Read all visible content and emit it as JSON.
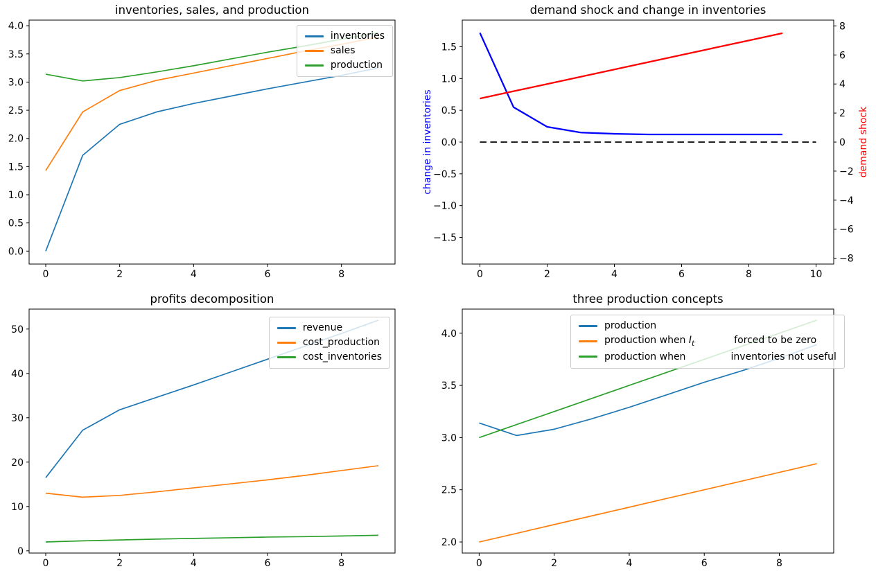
{
  "figure": {
    "background": "#ffffff",
    "rows": 2,
    "cols": 2
  },
  "chart_data": [
    {
      "type": "line",
      "title": "inventories, sales, and production",
      "x": [
        0,
        1,
        2,
        3,
        4,
        5,
        6,
        7,
        8,
        9
      ],
      "xlim": [
        -0.45,
        9.45
      ],
      "ylim": [
        -0.23,
        4.1
      ],
      "xticks": {
        "values": [
          0,
          2,
          4,
          6,
          8
        ],
        "labels": [
          "0",
          "2",
          "4",
          "6",
          "8"
        ]
      },
      "yticks": {
        "values": [
          0.0,
          0.5,
          1.0,
          1.5,
          2.0,
          2.5,
          3.0,
          3.5,
          4.0
        ],
        "labels": [
          "0.0",
          "0.5",
          "1.0",
          "1.5",
          "2.0",
          "2.5",
          "3.0",
          "3.5",
          "4.0"
        ]
      },
      "grid": false,
      "legend_loc": "upper right",
      "series": [
        {
          "name": "inventories",
          "color": "#1f77b4",
          "lw": 1.7,
          "values": [
            0.0,
            1.7,
            2.25,
            2.47,
            2.62,
            2.75,
            2.88,
            3.0,
            3.12,
            3.25
          ],
          "legend": [
            {
              "t": "inventories"
            }
          ]
        },
        {
          "name": "sales",
          "color": "#ff7f0e",
          "lw": 1.7,
          "values": [
            1.43,
            2.47,
            2.85,
            3.03,
            3.16,
            3.29,
            3.42,
            3.55,
            3.67,
            3.8
          ],
          "legend": [
            {
              "t": "sales"
            }
          ]
        },
        {
          "name": "production",
          "color": "#2ca02c",
          "lw": 1.7,
          "values": [
            3.14,
            3.02,
            3.08,
            3.18,
            3.29,
            3.41,
            3.53,
            3.64,
            3.76,
            3.88
          ],
          "legend": [
            {
              "t": "production"
            }
          ]
        }
      ]
    },
    {
      "type": "line",
      "title": "demand shock and change in inventories",
      "x": [
        0,
        1,
        2,
        3,
        4,
        5,
        6,
        7,
        8,
        9
      ],
      "xlim": [
        -0.525,
        10.525
      ],
      "ylim": [
        -1.92,
        1.92
      ],
      "ylim_right": [
        -8.4,
        8.4
      ],
      "xticks": {
        "values": [
          0,
          2,
          4,
          6,
          8,
          10
        ],
        "labels": [
          "0",
          "2",
          "4",
          "6",
          "8",
          "10"
        ]
      },
      "yticks": {
        "values": [
          -1.5,
          -1.0,
          -0.5,
          0.0,
          0.5,
          1.0,
          1.5
        ],
        "labels": [
          "−1.5",
          "−1.0",
          "−0.5",
          "0.0",
          "0.5",
          "1.0",
          "1.5"
        ]
      },
      "yticks_right": {
        "values": [
          -8,
          -6,
          -4,
          -2,
          0,
          2,
          4,
          6,
          8
        ],
        "labels": [
          "−8",
          "−6",
          "−4",
          "−2",
          "0",
          "2",
          "4",
          "6",
          "8"
        ]
      },
      "ylabel_left": {
        "text": "change in inventories",
        "color": "#0000ff"
      },
      "ylabel_right": {
        "text": "demand shock",
        "color": "#ff0000"
      },
      "grid": false,
      "legend_loc": null,
      "series": [
        {
          "name": "zero line",
          "color": "#000000",
          "lw": 1.8,
          "dash": "9.5,5.5",
          "x": [
            0,
            10
          ],
          "values": [
            0,
            0
          ],
          "show_in_legend": false
        },
        {
          "name": "change in inventories",
          "color": "#0000ff",
          "lw": 2.3,
          "values": [
            1.72,
            0.55,
            0.24,
            0.15,
            0.13,
            0.12,
            0.12,
            0.12,
            0.12,
            0.12
          ],
          "show_in_legend": false
        },
        {
          "name": "demand shock",
          "color": "#ff0000",
          "lw": 2.3,
          "axis": "right",
          "values": [
            3.0,
            3.5,
            4.0,
            4.5,
            5.0,
            5.5,
            6.0,
            6.5,
            7.0,
            7.5
          ],
          "show_in_legend": false
        }
      ]
    },
    {
      "type": "line",
      "title": "profits decomposition",
      "x": [
        0,
        1,
        2,
        3,
        4,
        5,
        6,
        7,
        8,
        9
      ],
      "xlim": [
        -0.45,
        9.45
      ],
      "ylim": [
        -0.5,
        54.5
      ],
      "xticks": {
        "values": [
          0,
          2,
          4,
          6,
          8
        ],
        "labels": [
          "0",
          "2",
          "4",
          "6",
          "8"
        ]
      },
      "yticks": {
        "values": [
          0,
          10,
          20,
          30,
          40,
          50
        ],
        "labels": [
          "0",
          "10",
          "20",
          "30",
          "40",
          "50"
        ]
      },
      "grid": false,
      "legend_loc": "upper right",
      "series": [
        {
          "name": "revenue",
          "color": "#1f77b4",
          "lw": 1.7,
          "values": [
            16.5,
            27.2,
            31.8,
            34.6,
            37.4,
            40.3,
            43.2,
            46.1,
            49.0,
            52.0
          ],
          "legend": [
            {
              "t": "revenue"
            }
          ]
        },
        {
          "name": "cost_production",
          "color": "#ff7f0e",
          "lw": 1.7,
          "values": [
            13.0,
            12.1,
            12.5,
            13.3,
            14.2,
            15.1,
            16.0,
            17.0,
            18.1,
            19.2
          ],
          "legend": [
            {
              "t": "cost_production"
            }
          ]
        },
        {
          "name": "cost_inventories",
          "color": "#2ca02c",
          "lw": 1.7,
          "values": [
            2.0,
            2.25,
            2.45,
            2.65,
            2.8,
            2.95,
            3.1,
            3.2,
            3.35,
            3.5
          ],
          "legend": [
            {
              "t": "cost_inventories"
            }
          ]
        }
      ]
    },
    {
      "type": "line",
      "title": "three production concepts",
      "x": [
        0,
        1,
        2,
        3,
        4,
        5,
        6,
        7,
        8,
        9
      ],
      "xlim": [
        -0.45,
        9.45
      ],
      "ylim": [
        1.894,
        4.231
      ],
      "xticks": {
        "values": [
          0,
          2,
          4,
          6,
          8
        ],
        "labels": [
          "0",
          "2",
          "4",
          "6",
          "8"
        ]
      },
      "yticks": {
        "values": [
          2.0,
          2.5,
          3.0,
          3.5,
          4.0
        ],
        "labels": [
          "2.0",
          "2.5",
          "3.0",
          "3.5",
          "4.0"
        ]
      },
      "grid": false,
      "legend_loc": "upper center",
      "series": [
        {
          "name": "production",
          "color": "#1f77b4",
          "lw": 1.7,
          "values": [
            3.14,
            3.02,
            3.08,
            3.18,
            3.29,
            3.41,
            3.53,
            3.64,
            3.76,
            3.89
          ],
          "legend": [
            {
              "t": "production"
            }
          ]
        },
        {
          "name": "production when I_t forced to be zero",
          "color": "#ff7f0e",
          "lw": 1.7,
          "values": [
            2.0,
            2.083,
            2.167,
            2.25,
            2.333,
            2.417,
            2.5,
            2.583,
            2.667,
            2.75
          ],
          "legend": [
            {
              "t": "production when "
            },
            {
              "math": "I",
              "sub": "t"
            },
            {
              "gap": 57
            },
            {
              "t": "forced to be zero"
            }
          ]
        },
        {
          "name": "production when inventories not useful",
          "color": "#2ca02c",
          "lw": 1.7,
          "values": [
            3.0,
            3.125,
            3.25,
            3.375,
            3.5,
            3.625,
            3.75,
            3.875,
            4.0,
            4.125
          ],
          "legend": [
            {
              "t": "production when"
            },
            {
              "gap": 65
            },
            {
              "t": "inventories not useful"
            }
          ]
        }
      ]
    }
  ]
}
